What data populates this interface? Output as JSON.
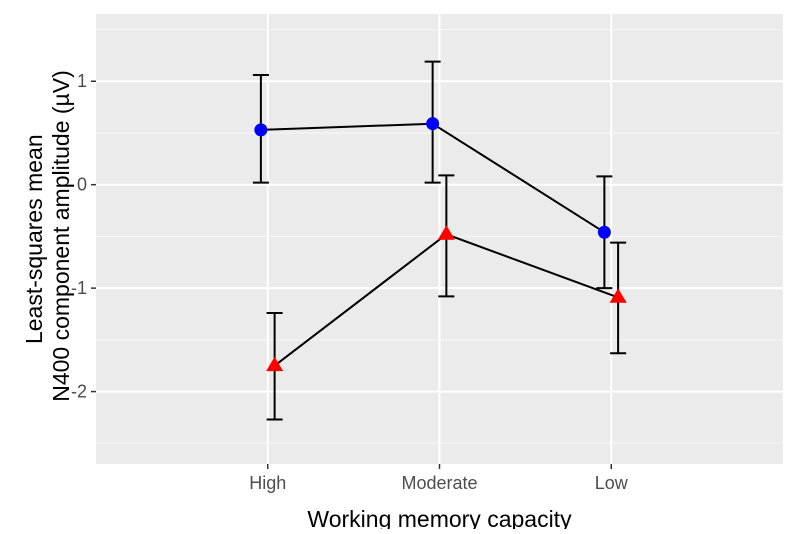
{
  "chart_data": {
    "type": "line",
    "title": "",
    "xlabel": "Working memory capacity",
    "ylabel_lines": [
      "Least-squares mean",
      "N400 component amplitude (µV)"
    ],
    "categories": [
      "High",
      "Moderate",
      "Low"
    ],
    "y_ticks": [
      1,
      0,
      -1,
      -2
    ],
    "y_tick_labels": [
      "1",
      "0",
      "-1",
      "-2"
    ],
    "ylim": [
      -2.7,
      1.65
    ],
    "grid": true,
    "legend": "none",
    "colors": {
      "panel": "#EBEBEB",
      "grid_major": "#FFFFFF",
      "grid_minor": "#F5F5F5",
      "tick_text": "#4D4D4D",
      "axis_title": "#000000",
      "line": "#000000"
    },
    "series": [
      {
        "marker": "circle",
        "color": "#0000FF",
        "x_offset": -0.04,
        "values": [
          0.53,
          0.59,
          -0.46
        ],
        "lower": [
          0.02,
          0.02,
          -1.0
        ],
        "upper": [
          1.06,
          1.19,
          0.08
        ]
      },
      {
        "marker": "triangle",
        "color": "#FF0000",
        "x_offset": 0.04,
        "values": [
          -1.75,
          -0.48,
          -1.09
        ],
        "lower": [
          -2.27,
          -1.08,
          -1.63
        ],
        "upper": [
          -1.24,
          0.09,
          -0.56
        ]
      }
    ]
  }
}
